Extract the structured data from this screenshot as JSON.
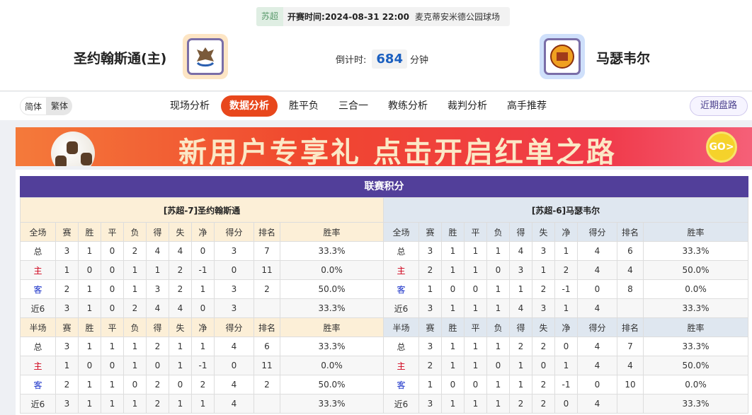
{
  "match": {
    "league": "苏超",
    "time_label": "开赛时间:",
    "time": "2024-08-31 22:00",
    "venue": "麦克蒂安米德公园球场",
    "home": "圣约翰斯通(主)",
    "away": "马瑟韦尔",
    "countdown_label": "倒计时:",
    "countdown": "684",
    "countdown_unit": "分钟"
  },
  "nav": {
    "lang": [
      "简体",
      "繁体"
    ],
    "tabs": [
      "现场分析",
      "数据分析",
      "胜平负",
      "三合一",
      "教练分析",
      "裁判分析",
      "高手推荐"
    ],
    "active": "数据分析",
    "recent": "近期盘路"
  },
  "banner": {
    "text": "新用户专享礼 点击开启红单之路",
    "go": "GO>"
  },
  "standings": {
    "title": "联赛积分",
    "headers_full": [
      "全场",
      "赛",
      "胜",
      "平",
      "负",
      "得",
      "失",
      "净",
      "得分",
      "排名",
      "胜率"
    ],
    "headers_half": [
      "半场",
      "赛",
      "胜",
      "平",
      "负",
      "得",
      "失",
      "净",
      "得分",
      "排名",
      "胜率"
    ],
    "home": {
      "name": "[苏超-7]圣约翰斯通",
      "full": [
        [
          "总",
          "3",
          "1",
          "0",
          "2",
          "4",
          "4",
          "0",
          "3",
          "7",
          "33.3%"
        ],
        [
          "主",
          "1",
          "0",
          "0",
          "1",
          "1",
          "2",
          "-1",
          "0",
          "11",
          "0.0%"
        ],
        [
          "客",
          "2",
          "1",
          "0",
          "1",
          "3",
          "2",
          "1",
          "3",
          "2",
          "50.0%"
        ],
        [
          "近6",
          "3",
          "1",
          "0",
          "2",
          "4",
          "4",
          "0",
          "3",
          "",
          "33.3%"
        ]
      ],
      "half": [
        [
          "总",
          "3",
          "1",
          "1",
          "1",
          "2",
          "1",
          "1",
          "4",
          "6",
          "33.3%"
        ],
        [
          "主",
          "1",
          "0",
          "0",
          "1",
          "0",
          "1",
          "-1",
          "0",
          "11",
          "0.0%"
        ],
        [
          "客",
          "2",
          "1",
          "1",
          "0",
          "2",
          "0",
          "2",
          "4",
          "2",
          "50.0%"
        ],
        [
          "近6",
          "3",
          "1",
          "1",
          "1",
          "2",
          "1",
          "1",
          "4",
          "",
          "33.3%"
        ]
      ]
    },
    "away": {
      "name": "[苏超-6]马瑟韦尔",
      "full": [
        [
          "总",
          "3",
          "1",
          "1",
          "1",
          "4",
          "3",
          "1",
          "4",
          "6",
          "33.3%"
        ],
        [
          "主",
          "2",
          "1",
          "1",
          "0",
          "3",
          "1",
          "2",
          "4",
          "4",
          "50.0%"
        ],
        [
          "客",
          "1",
          "0",
          "0",
          "1",
          "1",
          "2",
          "-1",
          "0",
          "8",
          "0.0%"
        ],
        [
          "近6",
          "3",
          "1",
          "1",
          "1",
          "4",
          "3",
          "1",
          "4",
          "",
          "33.3%"
        ]
      ],
      "half": [
        [
          "总",
          "3",
          "1",
          "1",
          "1",
          "2",
          "2",
          "0",
          "4",
          "7",
          "33.3%"
        ],
        [
          "主",
          "2",
          "1",
          "1",
          "0",
          "1",
          "0",
          "1",
          "4",
          "4",
          "50.0%"
        ],
        [
          "客",
          "1",
          "0",
          "0",
          "1",
          "1",
          "2",
          "-1",
          "0",
          "10",
          "0.0%"
        ],
        [
          "近6",
          "3",
          "1",
          "1",
          "1",
          "2",
          "2",
          "0",
          "4",
          "",
          "33.3%"
        ]
      ]
    }
  }
}
